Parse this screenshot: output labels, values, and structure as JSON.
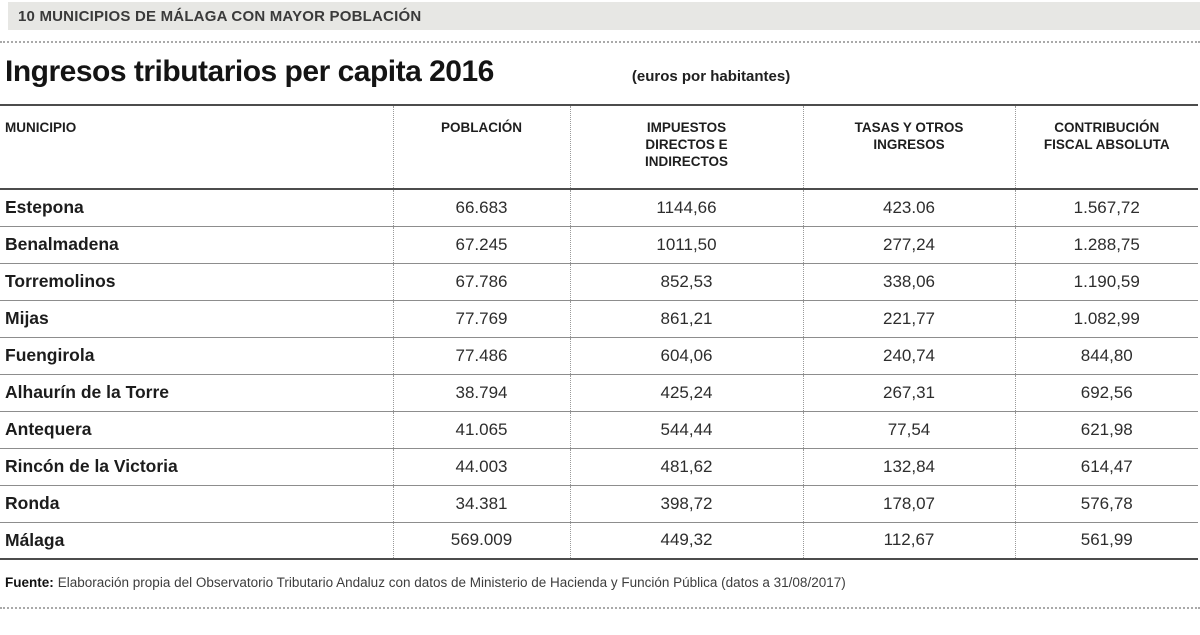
{
  "kicker": "10 MUNICIPIOS DE MÁLAGA CON MAYOR POBLACIÓN",
  "title": "Ingresos tributarios per capita 2016",
  "subtitle": "(euros por habitantes)",
  "source": {
    "label": "Fuente:",
    "text": "Elaboración propia del Observatorio Tributario Andaluz con datos de Ministerio de Hacienda y Función Pública (datos a 31/08/2017)"
  },
  "colors": {
    "kicker_bar_bg": "#e7e7e4",
    "strong_rule": "#4c4c4c",
    "row_rule": "#8d8d8d",
    "dotted_rule": "#a9a9a9"
  },
  "chart_data": {
    "type": "table",
    "title": "Ingresos tributarios per capita 2016",
    "subtitle": "(euros por habitantes)",
    "columns": [
      "MUNICIPIO",
      "POBLACIÓN",
      "IMPUESTOS DIRECTOS E INDIRECTOS",
      "TASAS Y OTROS INGRESOS",
      "CONTRIBUCIÓN FISCAL ABSOLUTA"
    ],
    "rows": [
      [
        "Estepona",
        "66.683",
        "1144,66",
        "423.06",
        "1.567,72"
      ],
      [
        "Benalmadena",
        "67.245",
        "1011,50",
        "277,24",
        "1.288,75"
      ],
      [
        "Torremolinos",
        "67.786",
        "852,53",
        "338,06",
        "1.190,59"
      ],
      [
        "Mijas",
        "77.769",
        "861,21",
        "221,77",
        "1.082,99"
      ],
      [
        "Fuengirola",
        "77.486",
        "604,06",
        "240,74",
        "844,80"
      ],
      [
        "Alhaurín de la Torre",
        "38.794",
        "425,24",
        "267,31",
        "692,56"
      ],
      [
        "Antequera",
        "41.065",
        "544,44",
        "77,54",
        "621,98"
      ],
      [
        "Rincón de la Victoria",
        "44.003",
        "481,62",
        "132,84",
        "614,47"
      ],
      [
        "Ronda",
        "34.381",
        "398,72",
        "178,07",
        "576,78"
      ],
      [
        "Málaga",
        "569.009",
        "449,32",
        "112,67",
        "561,99"
      ]
    ]
  }
}
